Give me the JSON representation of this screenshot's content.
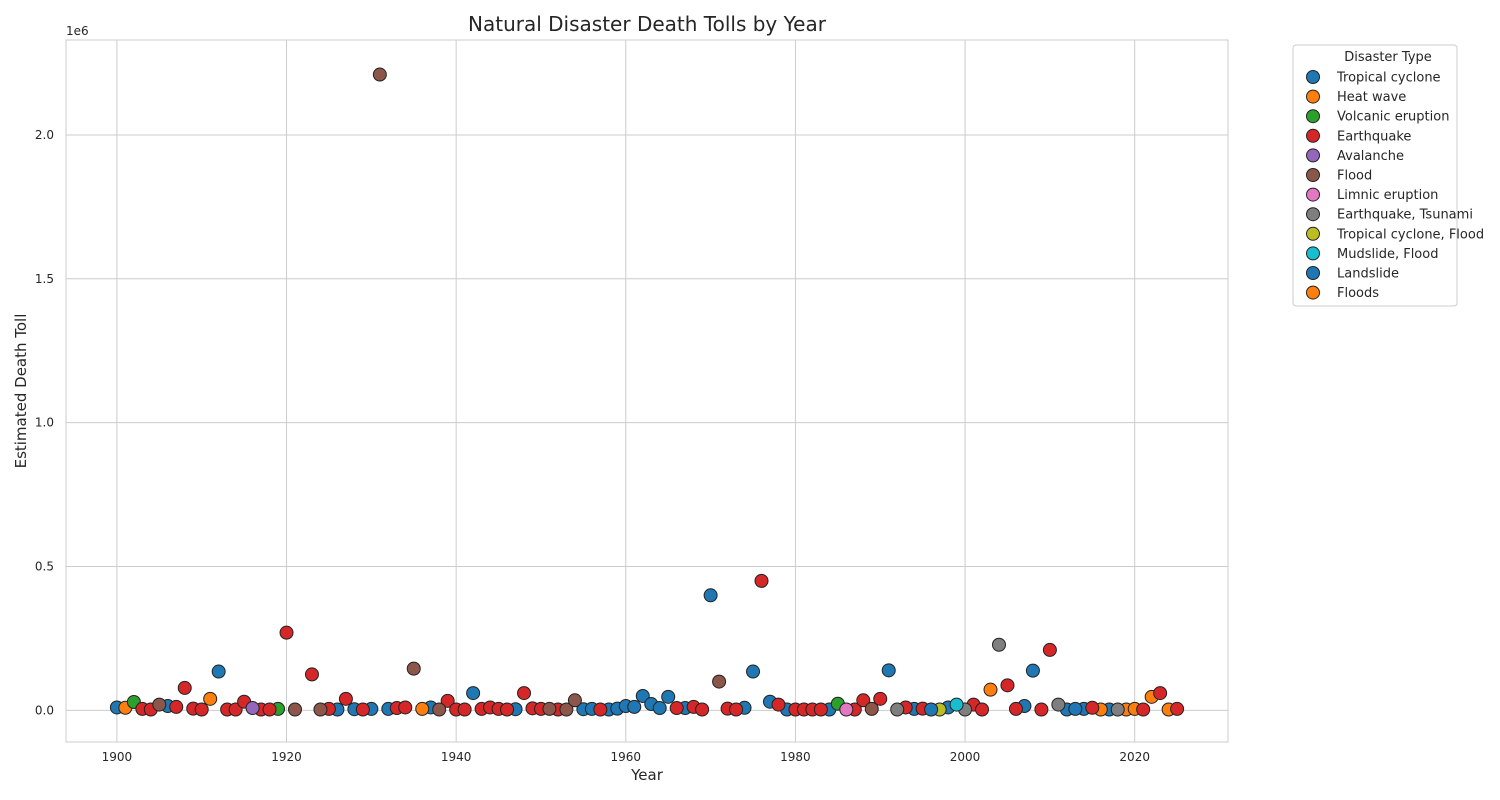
{
  "chart_data": {
    "type": "scatter",
    "title": "Natural Disaster Death Tolls by Year",
    "xlabel": "Year",
    "ylabel": "Estimated Death Toll",
    "y_offset_label": "1e6",
    "xlim": [
      1894,
      2031
    ],
    "ylim": [
      -110000,
      2330000
    ],
    "x_ticks": [
      1900,
      1920,
      1940,
      1960,
      1980,
      2000,
      2020
    ],
    "y_ticks": [
      0,
      500000,
      1000000,
      1500000,
      2000000
    ],
    "y_tick_labels": [
      "0.0",
      "0.5",
      "1.0",
      "1.5",
      "2.0"
    ],
    "grid": true,
    "legend": {
      "title": "Disaster Type",
      "placement": "outside-upper-right"
    },
    "series": [
      {
        "name": "Tropical cyclone",
        "color": "#1f77b4",
        "points": [
          [
            1900,
            10000
          ],
          [
            1906,
            15000
          ],
          [
            1912,
            135000
          ],
          [
            1926,
            3000
          ],
          [
            1928,
            4000
          ],
          [
            1930,
            5000
          ],
          [
            1932,
            5000
          ],
          [
            1937,
            10000
          ],
          [
            1942,
            60000
          ],
          [
            1947,
            4000
          ],
          [
            1955,
            4000
          ],
          [
            1956,
            5000
          ],
          [
            1958,
            3000
          ],
          [
            1959,
            6000
          ],
          [
            1960,
            15000
          ],
          [
            1961,
            12000
          ],
          [
            1962,
            50000
          ],
          [
            1963,
            22000
          ],
          [
            1964,
            8000
          ],
          [
            1965,
            47000
          ],
          [
            1967,
            8000
          ],
          [
            1970,
            400000
          ],
          [
            1974,
            9000
          ],
          [
            1975,
            135000
          ],
          [
            1977,
            30000
          ],
          [
            1979,
            3000
          ],
          [
            1984,
            3000
          ],
          [
            1991,
            139000
          ],
          [
            1994,
            5000
          ],
          [
            1998,
            10000
          ],
          [
            2007,
            15000
          ],
          [
            2008,
            138000
          ],
          [
            2012,
            3000
          ],
          [
            2014,
            5000
          ],
          [
            2017,
            3000
          ]
        ]
      },
      {
        "name": "Heat wave",
        "color": "#ff7f0e",
        "points": [
          [
            1901,
            9000
          ],
          [
            1911,
            40000
          ],
          [
            1936,
            5000
          ],
          [
            2003,
            72000
          ],
          [
            2016,
            3000
          ],
          [
            2019,
            3000
          ],
          [
            2020,
            5000
          ],
          [
            2022,
            47000
          ],
          [
            2024,
            3000
          ]
        ]
      },
      {
        "name": "Volcanic eruption",
        "color": "#2ca02c",
        "points": [
          [
            1902,
            29000
          ],
          [
            1919,
            5000
          ],
          [
            1985,
            23000
          ]
        ]
      },
      {
        "name": "Earthquake",
        "color": "#d62728",
        "points": [
          [
            1903,
            5000
          ],
          [
            1904,
            3000
          ],
          [
            1907,
            12000
          ],
          [
            1908,
            78000
          ],
          [
            1909,
            6000
          ],
          [
            1910,
            3000
          ],
          [
            1913,
            3000
          ],
          [
            1914,
            3000
          ],
          [
            1915,
            30000
          ],
          [
            1917,
            3000
          ],
          [
            1918,
            3000
          ],
          [
            1920,
            270000
          ],
          [
            1923,
            125000
          ],
          [
            1925,
            5000
          ],
          [
            1927,
            40000
          ],
          [
            1929,
            3000
          ],
          [
            1933,
            8000
          ],
          [
            1934,
            10000
          ],
          [
            1939,
            33000
          ],
          [
            1940,
            3000
          ],
          [
            1941,
            3000
          ],
          [
            1943,
            5000
          ],
          [
            1944,
            10000
          ],
          [
            1945,
            5000
          ],
          [
            1946,
            3000
          ],
          [
            1948,
            60000
          ],
          [
            1949,
            7000
          ],
          [
            1950,
            5000
          ],
          [
            1952,
            3000
          ],
          [
            1957,
            3000
          ],
          [
            1966,
            8000
          ],
          [
            1968,
            12000
          ],
          [
            1969,
            3000
          ],
          [
            1972,
            6000
          ],
          [
            1973,
            3000
          ],
          [
            1976,
            450000
          ],
          [
            1978,
            20000
          ],
          [
            1980,
            3000
          ],
          [
            1981,
            3000
          ],
          [
            1982,
            3000
          ],
          [
            1983,
            3000
          ],
          [
            1987,
            3000
          ],
          [
            1988,
            35000
          ],
          [
            1990,
            40000
          ],
          [
            1993,
            10000
          ],
          [
            1995,
            6000
          ],
          [
            2001,
            20000
          ],
          [
            2002,
            3000
          ],
          [
            2005,
            87000
          ],
          [
            2006,
            5000
          ],
          [
            2009,
            3000
          ],
          [
            2010,
            210000
          ],
          [
            2015,
            9000
          ],
          [
            2021,
            3000
          ],
          [
            2023,
            60000
          ],
          [
            2025,
            5000
          ]
        ]
      },
      {
        "name": "Avalanche",
        "color": "#9467bd",
        "points": [
          [
            1916,
            8000
          ]
        ]
      },
      {
        "name": "Flood",
        "color": "#8c564b",
        "points": [
          [
            1905,
            20000
          ],
          [
            1921,
            3000
          ],
          [
            1924,
            3000
          ],
          [
            1931,
            2210000
          ],
          [
            1935,
            145000
          ],
          [
            1938,
            3000
          ],
          [
            1951,
            5000
          ],
          [
            1953,
            3000
          ],
          [
            1954,
            35000
          ],
          [
            1971,
            100000
          ],
          [
            1989,
            5000
          ]
        ]
      },
      {
        "name": "Limnic eruption",
        "color": "#e377c2",
        "points": [
          [
            1986,
            3000
          ]
        ]
      },
      {
        "name": "Earthquake, Tsunami",
        "color": "#7f7f7f",
        "points": [
          [
            1992,
            3000
          ],
          [
            2000,
            3000
          ],
          [
            2004,
            228000
          ],
          [
            2011,
            20000
          ],
          [
            2018,
            3000
          ]
        ]
      },
      {
        "name": "Tropical cyclone, Flood",
        "color": "#bcbd22",
        "points": [
          [
            1997,
            3000
          ]
        ]
      },
      {
        "name": "Mudslide, Flood",
        "color": "#17becf",
        "points": [
          [
            1999,
            20000
          ]
        ]
      },
      {
        "name": "Landslide",
        "color": "#1f77b4",
        "points": [
          [
            1996,
            3000
          ],
          [
            2013,
            5000
          ]
        ]
      },
      {
        "name": "Floods",
        "color": "#ff7f0e",
        "points": []
      }
    ]
  }
}
